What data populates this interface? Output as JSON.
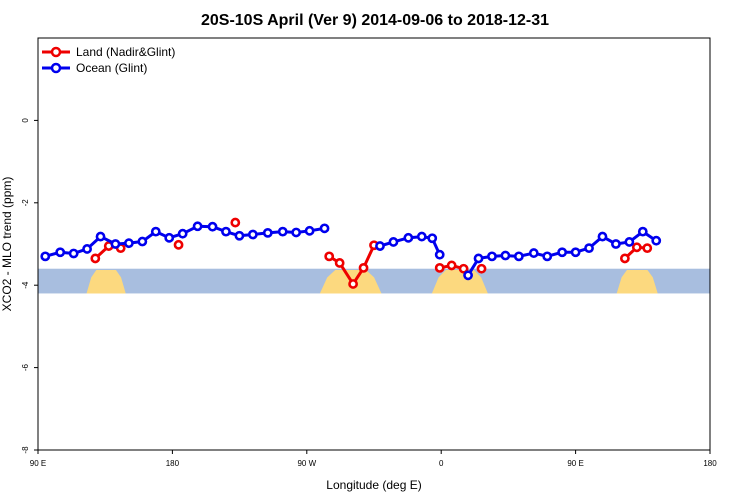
{
  "colors": {
    "land": "#ee0000",
    "ocean": "#0000ee",
    "map_ocean": "#a8bedf",
    "map_land": "#fcd97f"
  },
  "chart_data": {
    "type": "line",
    "title": "20S-10S April (Ver 9)   2014-09-06 to 2018-12-31",
    "xlabel": "Longitude (deg E)",
    "ylabel": "XCO2 - MLO trend (ppm)",
    "xlim": [
      90,
      450
    ],
    "ylim": [
      -8,
      2
    ],
    "xticks": [
      90,
      162,
      234,
      306,
      378,
      450
    ],
    "xtick_labels": [
      "90 E",
      "180",
      "90 W",
      "0",
      "90 E",
      "180"
    ],
    "yticks": [
      -8,
      -6,
      -4,
      -2,
      0
    ],
    "ytick_labels": [
      "-8",
      "-6",
      "-4",
      "-2",
      "0"
    ],
    "legend_position": "top-left",
    "series": [
      {
        "name": "Land (Nadir&Glint)",
        "color_key": "land",
        "segments": [
          [
            [
              120.7,
              -3.35
            ],
            [
              127.9,
              -3.05
            ],
            [
              134.3,
              -3.1
            ]
          ],
          [
            [
              165.3,
              -3.02
            ]
          ],
          [
            [
              195.7,
              -2.48
            ]
          ],
          [
            [
              246.0,
              -3.3
            ],
            [
              251.6,
              -3.46
            ],
            [
              258.8,
              -3.97
            ],
            [
              264.4,
              -3.58
            ],
            [
              270.0,
              -3.03
            ]
          ],
          [
            [
              305.2,
              -3.58
            ],
            [
              311.6,
              -3.52
            ],
            [
              318.0,
              -3.6
            ]
          ],
          [
            [
              327.6,
              -3.6
            ]
          ],
          [
            [
              404.4,
              -3.35
            ],
            [
              410.8,
              -3.08
            ],
            [
              416.4,
              -3.1
            ]
          ]
        ]
      },
      {
        "name": "Ocean (Glint)",
        "color_key": "ocean",
        "segments": [
          [
            [
              93.9,
              -3.3
            ],
            [
              101.9,
              -3.2
            ],
            [
              109.1,
              -3.23
            ],
            [
              116.3,
              -3.12
            ],
            [
              123.5,
              -2.82
            ],
            [
              131.5,
              -3.0
            ],
            [
              138.7,
              -2.98
            ],
            [
              145.9,
              -2.94
            ],
            [
              153.1,
              -2.7
            ],
            [
              160.3,
              -2.85
            ],
            [
              167.5,
              -2.75
            ],
            [
              175.5,
              -2.57
            ],
            [
              183.5,
              -2.58
            ],
            [
              190.7,
              -2.7
            ],
            [
              197.9,
              -2.8
            ],
            [
              205.1,
              -2.77
            ],
            [
              213.1,
              -2.73
            ],
            [
              221.1,
              -2.7
            ],
            [
              228.3,
              -2.72
            ],
            [
              235.5,
              -2.68
            ],
            [
              243.5,
              -2.62
            ]
          ],
          [
            [
              273.2,
              -3.05
            ],
            [
              280.4,
              -2.95
            ],
            [
              288.4,
              -2.85
            ],
            [
              295.6,
              -2.82
            ],
            [
              301.2,
              -2.86
            ],
            [
              305.2,
              -3.26
            ]
          ],
          [
            [
              320.4,
              -3.76
            ],
            [
              326.0,
              -3.35
            ],
            [
              333.2,
              -3.3
            ],
            [
              340.4,
              -3.28
            ],
            [
              347.6,
              -3.3
            ],
            [
              355.6,
              -3.22
            ],
            [
              362.8,
              -3.3
            ],
            [
              370.8,
              -3.2
            ],
            [
              378.0,
              -3.2
            ],
            [
              385.2,
              -3.1
            ],
            [
              392.4,
              -2.82
            ],
            [
              399.6,
              -3.0
            ],
            [
              406.8,
              -2.95
            ],
            [
              414.0,
              -2.7
            ],
            [
              421.2,
              -2.92
            ]
          ]
        ]
      }
    ],
    "basemap": {
      "y_range": [
        -4.2,
        -3.6
      ],
      "land_bands": [
        [
          116,
          137
        ],
        [
          241,
          274
        ],
        [
          301,
          331
        ],
        [
          400,
          422
        ]
      ]
    }
  }
}
